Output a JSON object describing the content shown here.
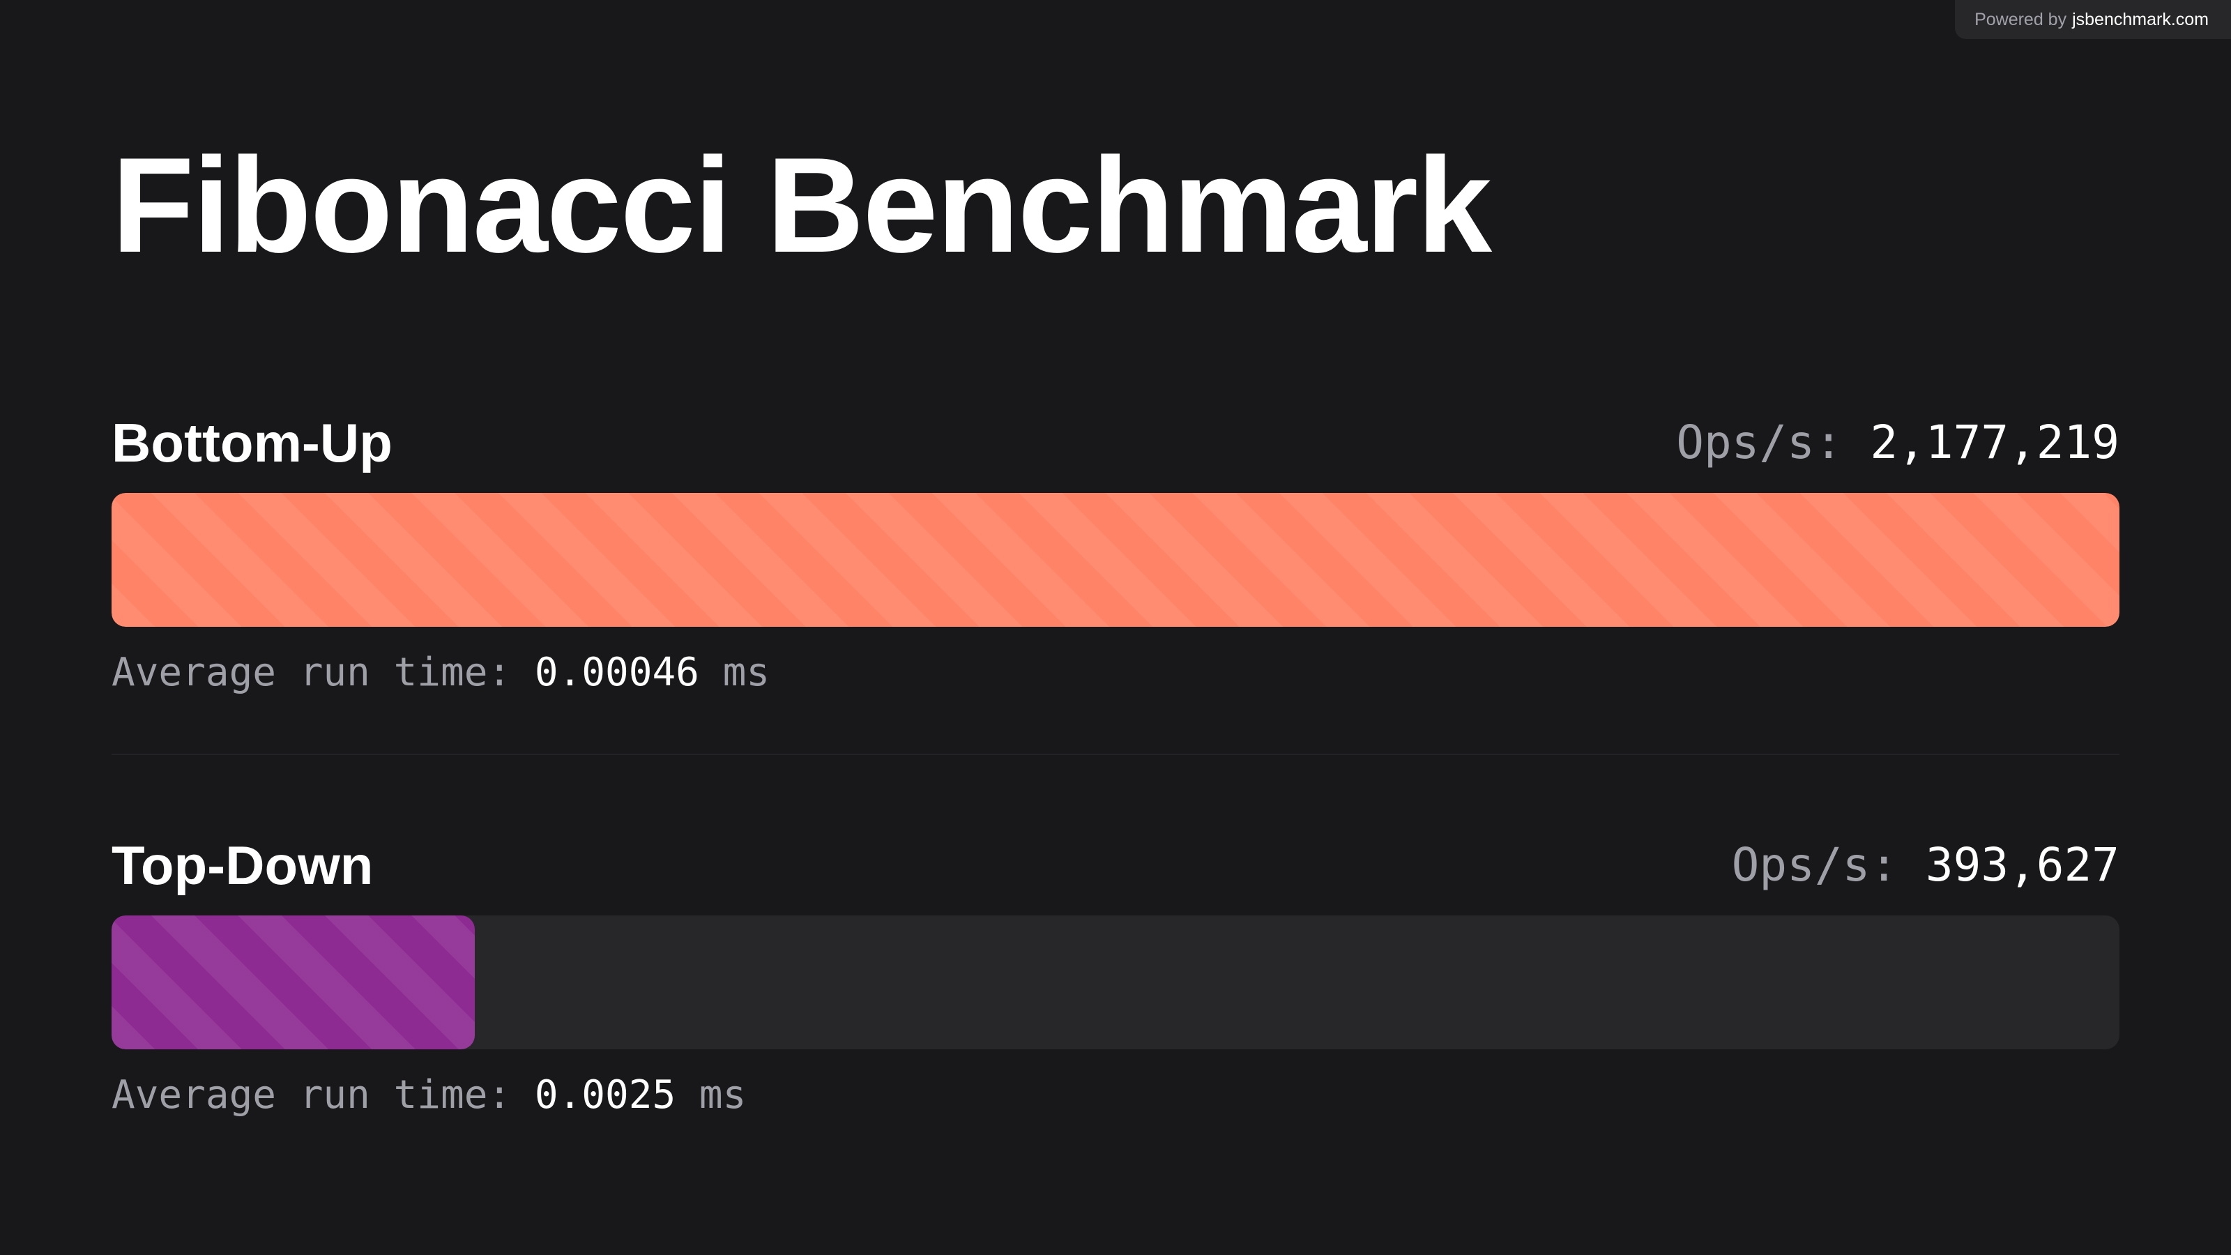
{
  "powered_by": {
    "prefix": "Powered by",
    "site": "jsbenchmark.com"
  },
  "title": "Fibonacci Benchmark",
  "labels": {
    "ops": "Ops/s:",
    "avg": "Average run time:",
    "unit": "ms"
  },
  "colors": {
    "background": "#18181b",
    "track": "#27272a",
    "bottom_up": "#ff8366",
    "top_down": "#8e2b93"
  },
  "chart_data": {
    "type": "bar",
    "orientation": "horizontal",
    "categories": [
      "Bottom-Up",
      "Top-Down"
    ],
    "values": [
      2177219,
      393627
    ],
    "xlim": [
      0,
      2177219
    ],
    "series": [
      {
        "name": "Bottom-Up",
        "ops_display": "2,177,219",
        "ops_per_sec": 2177219,
        "avg_run_time": "0.00046",
        "color": "#ff8366"
      },
      {
        "name": "Top-Down",
        "ops_display": "393,627",
        "ops_per_sec": 393627,
        "avg_run_time": "0.0025",
        "color": "#8e2b93"
      }
    ]
  }
}
